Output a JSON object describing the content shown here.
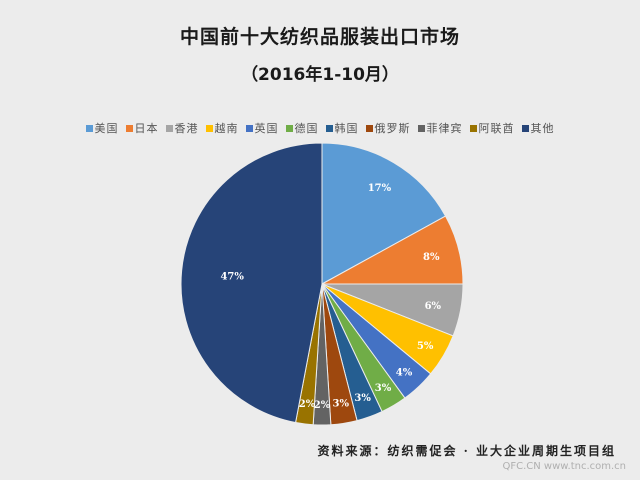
{
  "chart_data": {
    "type": "pie",
    "title": "中国前十大纺织品服装出口市场",
    "subtitle": "（2016年1-10月）",
    "legend_position": "top",
    "slices": [
      {
        "label": "美国",
        "value": 17,
        "display": "17%",
        "color": "#5b9bd5"
      },
      {
        "label": "日本",
        "value": 8,
        "display": "8%",
        "color": "#ed7d31"
      },
      {
        "label": "香港",
        "value": 6,
        "display": "6%",
        "color": "#a5a5a5"
      },
      {
        "label": "越南",
        "value": 5,
        "display": "5%",
        "color": "#ffc000"
      },
      {
        "label": "英国",
        "value": 4,
        "display": "4%",
        "color": "#4472c4"
      },
      {
        "label": "德国",
        "value": 3,
        "display": "3%",
        "color": "#70ad47"
      },
      {
        "label": "韩国",
        "value": 3,
        "display": "3%",
        "color": "#255e91"
      },
      {
        "label": "俄罗斯",
        "value": 3,
        "display": "3%",
        "color": "#9e480e"
      },
      {
        "label": "菲律宾",
        "value": 2,
        "display": "2%",
        "color": "#636363"
      },
      {
        "label": "阿联酋",
        "value": 2,
        "display": "2%",
        "color": "#997300"
      },
      {
        "label": "其他",
        "value": 47,
        "display": "47%",
        "color": "#264478"
      }
    ]
  },
  "source": "资料来源：纺织需促会 · 业大企业周期生项目组",
  "watermark": "QFC.CN www.tnc.com.cn"
}
